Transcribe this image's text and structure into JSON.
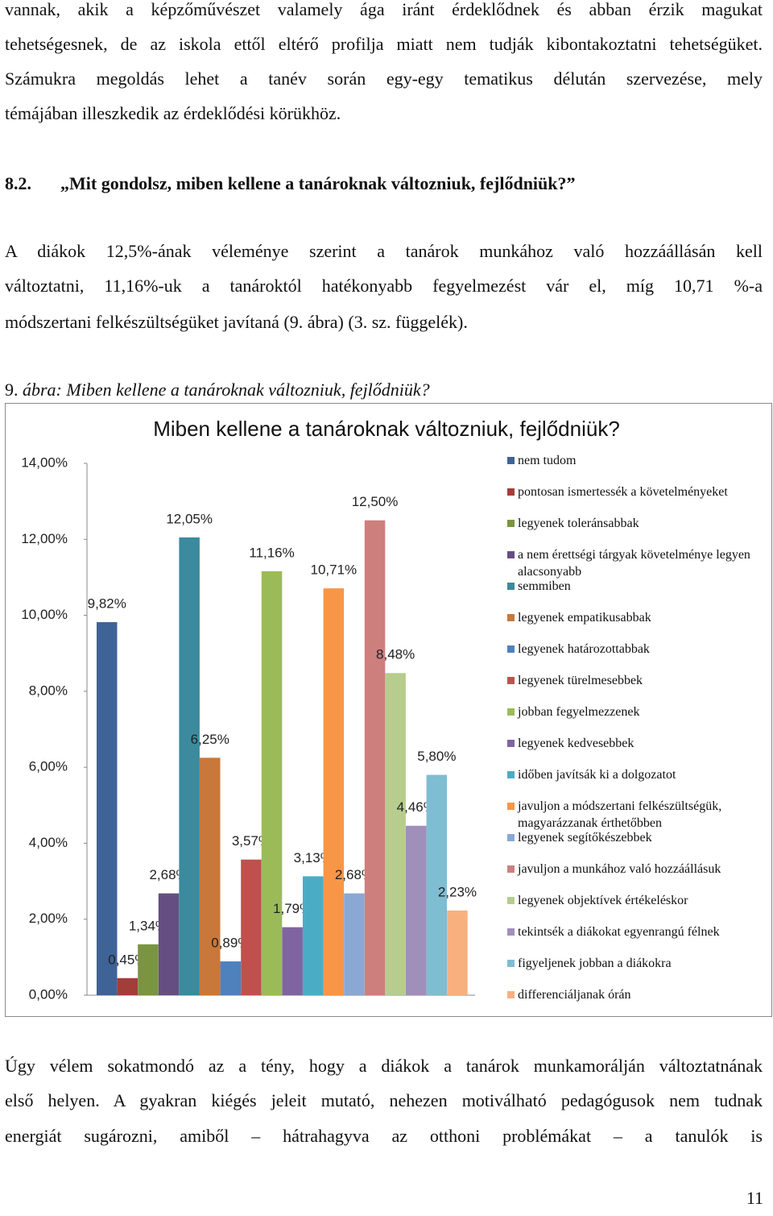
{
  "paragraph_1": {
    "lines": [
      "vannak, akik a képzőművészet valamely ága iránt érdeklődnek és abban érzik magukat",
      "tehetségesnek, de az iskola ettől eltérő profilja miatt nem tudják kibontakoztatni tehetségüket.",
      "Számukra megoldás lehet a tanév során egy-egy tematikus délután szervezése, mely",
      "témájában illeszkedik az érdeklődési körükhöz."
    ]
  },
  "heading": {
    "number": "8.2.",
    "text": "„Mit gondolsz, miben kellene a tanároknak változniuk, fejlődniük?”"
  },
  "paragraph_2": {
    "lines": [
      "A diákok 12,5%-ának véleménye szerint a tanárok munkához való hozzáállásán kell",
      "változtatni, 11,16%-uk a tanároktól hatékonyabb fegyelmezést vár el, míg 10,71 %-a",
      "módszertani felkészültségüket javítaná (9. ábra) (3. sz. függelék)."
    ]
  },
  "caption": {
    "number": "9.",
    "text": "ábra: Miben kellene a tanároknak változniuk, fejlődniük?"
  },
  "chart_data": {
    "type": "bar",
    "title": "Miben kellene a tanároknak változniuk, fejlődniük?",
    "ylim": [
      0,
      14
    ],
    "yticks": [
      {
        "value": 0,
        "label": "0,00%"
      },
      {
        "value": 2,
        "label": "2,00%"
      },
      {
        "value": 4,
        "label": "4,00%"
      },
      {
        "value": 6,
        "label": "6,00%"
      },
      {
        "value": 8,
        "label": "8,00%"
      },
      {
        "value": 10,
        "label": "10,00%"
      },
      {
        "value": 12,
        "label": "12,00%"
      },
      {
        "value": 14,
        "label": "14,00%"
      }
    ],
    "series": [
      {
        "name": "nem tudom",
        "color": "#3e6396",
        "values": [
          9.82
        ],
        "value_labels": [
          "9,82%"
        ]
      },
      {
        "name": "pontosan ismertessék a követelményeket",
        "color": "#a33d3a",
        "values": [
          0.45
        ],
        "value_labels": [
          "0,45%"
        ]
      },
      {
        "name": "legyenek toleránsabbak",
        "color": "#7b9441",
        "values": [
          1.34
        ],
        "value_labels": [
          "1,34%"
        ]
      },
      {
        "name": "a nem érettségi tárgyak követelménye legyen alacsonyabb",
        "color": "#654f82",
        "values": [
          2.68
        ],
        "value_labels": [
          "2,68%"
        ]
      },
      {
        "name": "semmiben",
        "color": "#3b8a9d",
        "values": [
          12.05
        ],
        "value_labels": [
          "12,05%"
        ]
      },
      {
        "name": "legyenek empatikusabbak",
        "color": "#c8783a",
        "values": [
          6.25
        ],
        "value_labels": [
          "6,25%"
        ]
      },
      {
        "name": "legyenek határozottabbak",
        "color": "#4f81bd",
        "values": [
          0.89
        ],
        "value_labels": [
          "0,89%"
        ]
      },
      {
        "name": "legyenek türelmesebbek",
        "color": "#c0504d",
        "values": [
          3.57
        ],
        "value_labels": [
          "3,57%"
        ]
      },
      {
        "name": "jobban fegyelmezzenek",
        "color": "#9bbb59",
        "values": [
          11.16
        ],
        "value_labels": [
          "11,16%"
        ]
      },
      {
        "name": "legyenek kedvesebbek",
        "color": "#8064a2",
        "values": [
          1.79
        ],
        "value_labels": [
          "1,79%"
        ]
      },
      {
        "name": "időben javítsák ki a dolgozatot",
        "color": "#4bacc6",
        "values": [
          3.13
        ],
        "value_labels": [
          "3,13%"
        ]
      },
      {
        "name": "javuljon a módszertani felkészültségük, magyarázzanak érthetőbben",
        "color": "#f79646",
        "values": [
          10.71
        ],
        "value_labels": [
          "10,71%"
        ]
      },
      {
        "name": "legyenek segítőkészebbek",
        "color": "#8aa8d4",
        "values": [
          2.68
        ],
        "value_labels": [
          "2,68%"
        ]
      },
      {
        "name": "javuljon a munkához való hozzáállásuk",
        "color": "#cd7f7d",
        "values": [
          12.5
        ],
        "value_labels": [
          "12,50%"
        ]
      },
      {
        "name": "legyenek objektívek értékeléskor",
        "color": "#b6cd8d",
        "values": [
          8.48
        ],
        "value_labels": [
          "8,48%"
        ]
      },
      {
        "name": "tekintsék a diákokat egyenrangú félnek",
        "color": "#a08fbb",
        "values": [
          4.46
        ],
        "value_labels": [
          "4,46%"
        ]
      },
      {
        "name": "figyeljenek jobban a diákokra",
        "color": "#7fbdd3",
        "values": [
          5.8
        ],
        "value_labels": [
          "5,80%"
        ]
      },
      {
        "name": "differenciáljanak órán",
        "color": "#f9b07f",
        "values": [
          2.23
        ],
        "value_labels": [
          "2,23%"
        ]
      }
    ]
  },
  "paragraph_3": {
    "lines": [
      "Úgy vélem sokatmondó az a tény, hogy a diákok a tanárok munkamorálján változtatnának",
      "első helyen. A gyakran kiégés jeleit mutató, nehezen motiválható pedagógusok nem tudnak",
      "energiát sugározni, amiből – hátrahagyva az otthoni problémákat – a tanulók is"
    ]
  },
  "page_number": "11"
}
